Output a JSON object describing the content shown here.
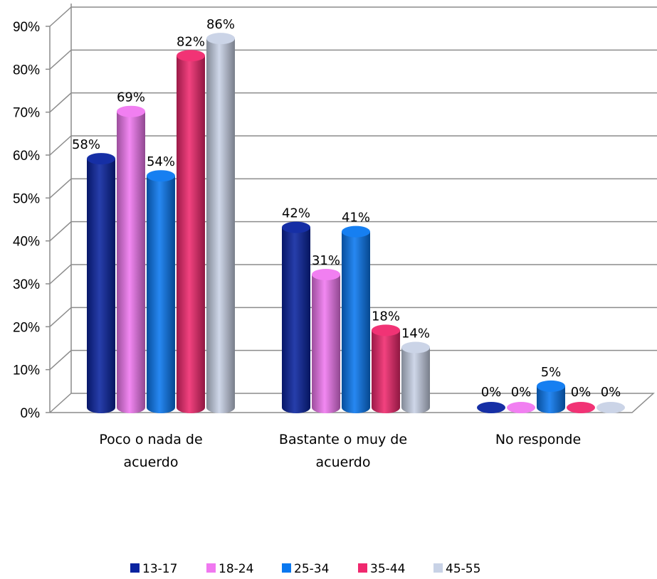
{
  "chart_data": {
    "type": "bar",
    "categories": [
      [
        "Poco o nada de",
        "acuerdo"
      ],
      [
        "Bastante o muy de",
        "acuerdo"
      ],
      [
        "No responde"
      ]
    ],
    "series": [
      {
        "name": "13-17",
        "values": [
          58,
          42,
          0
        ],
        "color": "#0a24a0",
        "labels": [
          "58%",
          "42%",
          "0%"
        ]
      },
      {
        "name": "18-24",
        "values": [
          69,
          31,
          0
        ],
        "color": "#f078f0",
        "labels": [
          "69%",
          "31%",
          "0%"
        ]
      },
      {
        "name": "25-34",
        "values": [
          54,
          41,
          5
        ],
        "color": "#0a78f0",
        "labels": [
          "54%",
          "41%",
          "5%"
        ]
      },
      {
        "name": "35-44",
        "values": [
          82,
          18,
          0
        ],
        "color": "#f0286e",
        "labels": [
          "82%",
          "18%",
          "0%"
        ]
      },
      {
        "name": "45-55",
        "values": [
          86,
          14,
          0
        ],
        "color": "#c8d2e6",
        "labels": [
          "86%",
          "14%",
          "0%"
        ]
      }
    ],
    "yticks": [
      "0%",
      "10%",
      "20%",
      "30%",
      "40%",
      "50%",
      "60%",
      "70%",
      "80%",
      "90%"
    ],
    "ylim": [
      0,
      90
    ],
    "grid": true,
    "legend": "bottom",
    "style": "3d-cylinder"
  }
}
